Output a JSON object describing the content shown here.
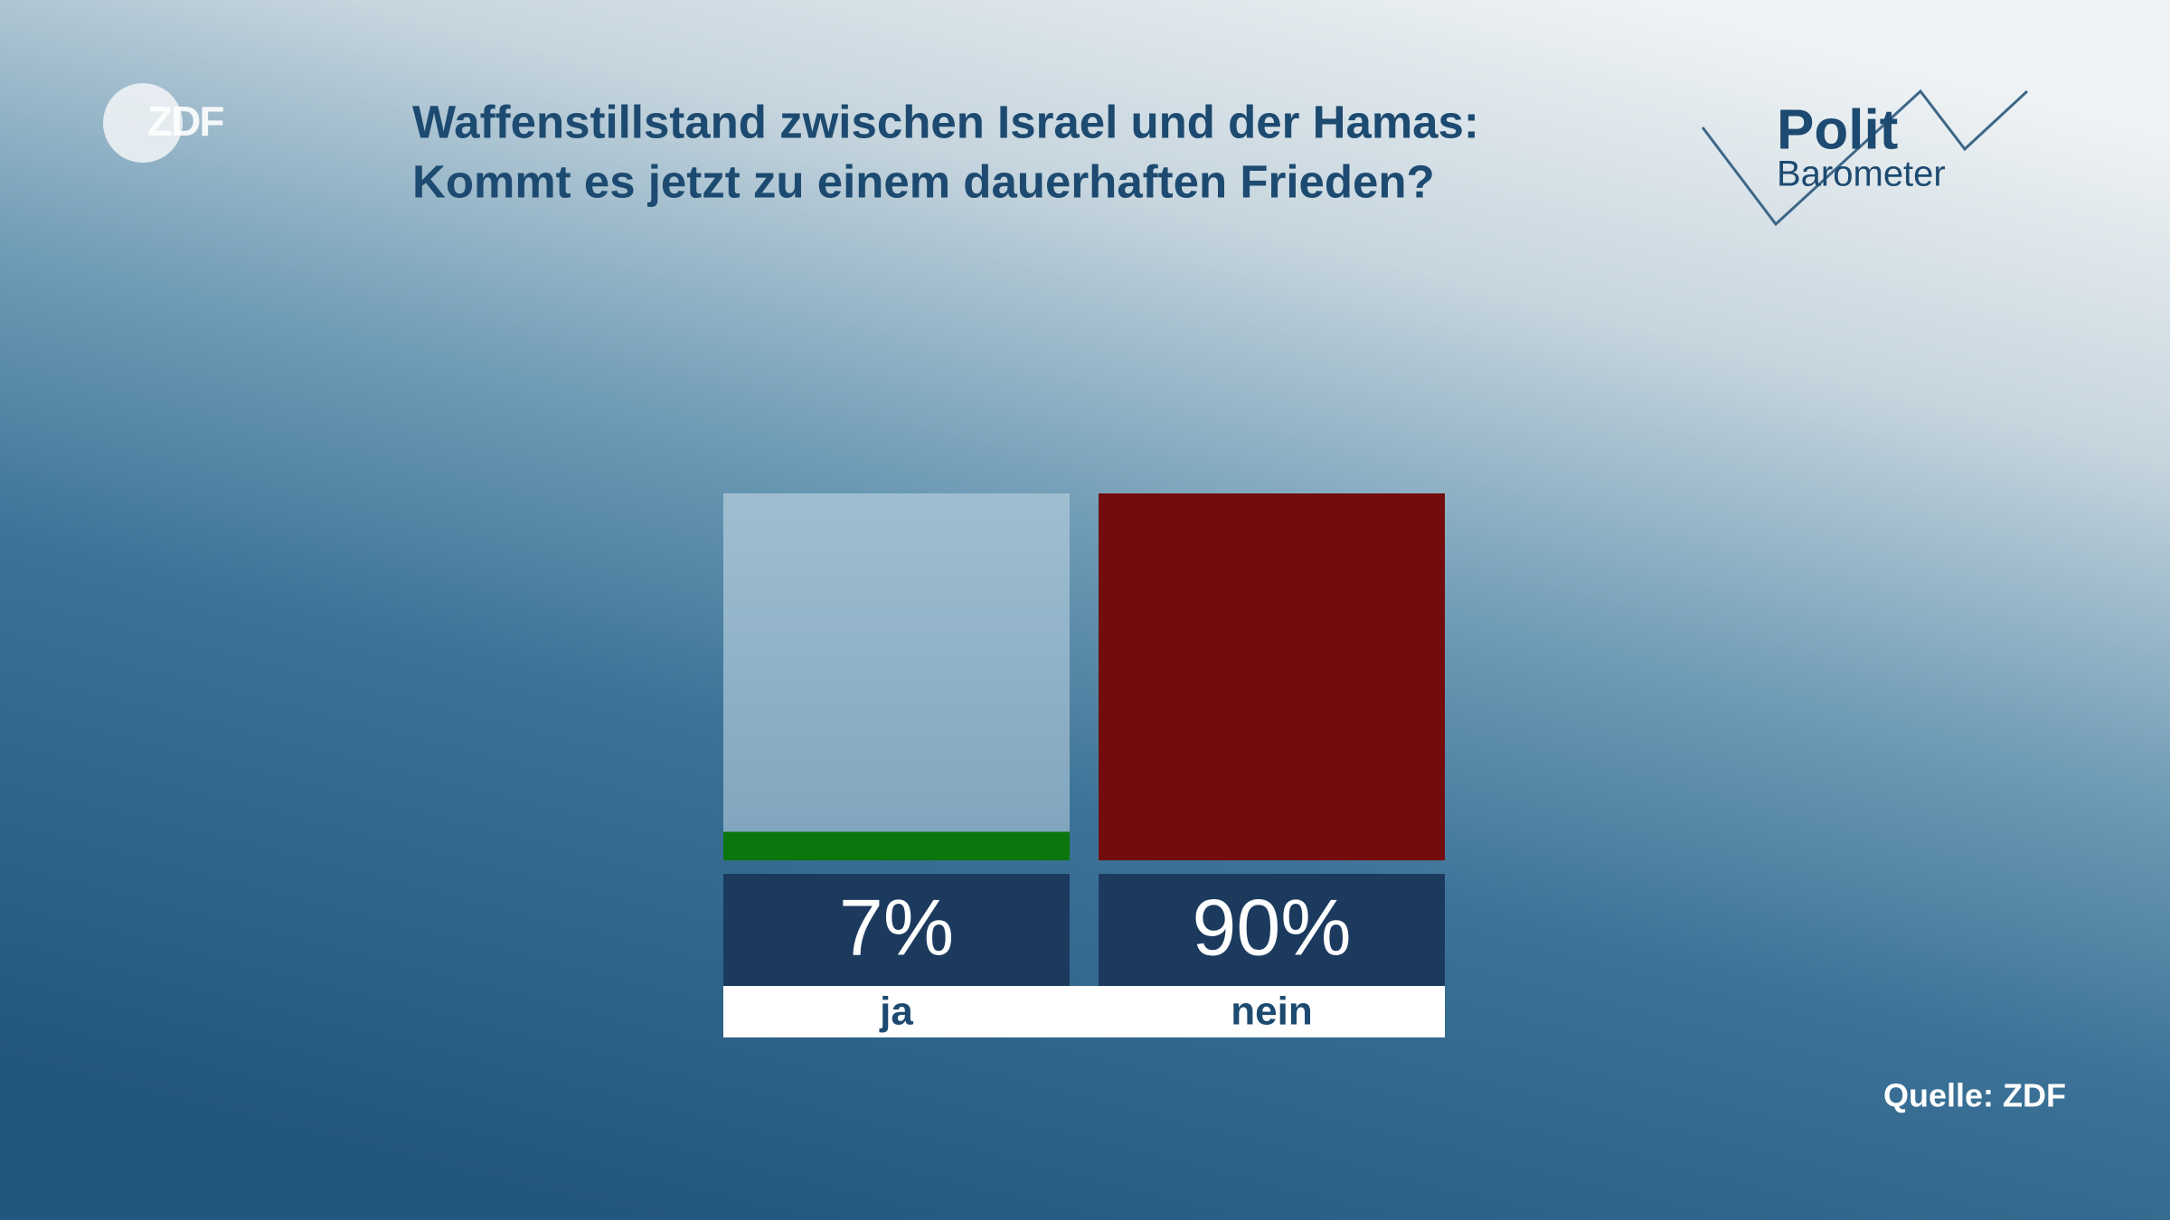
{
  "chart_data": {
    "type": "bar",
    "title": [
      "Waffenstillstand zwischen Israel und der Hamas:",
      "Kommt es jetzt zu einem dauerhaften Frieden?"
    ],
    "categories": [
      "ja",
      "nein"
    ],
    "values": [
      7,
      90
    ],
    "value_labels": [
      "7%",
      "90%"
    ],
    "colors": [
      "#0a760c",
      "#730c0d"
    ],
    "ylim": [
      0,
      90
    ],
    "source": "Quelle: ZDF"
  },
  "branding": {
    "broadcaster": "ZDF",
    "show": [
      "Polit",
      "Barometer"
    ]
  }
}
